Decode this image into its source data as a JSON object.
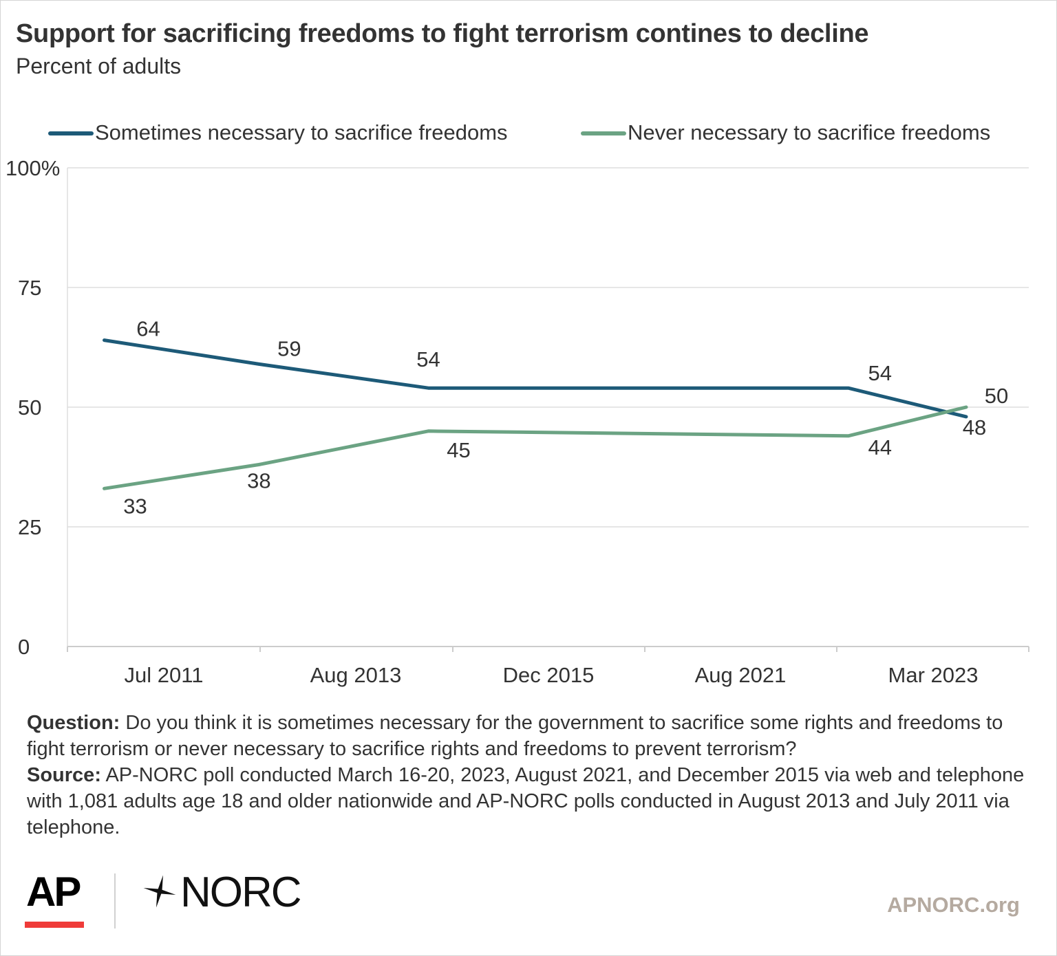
{
  "title": "Support for sacrificing freedoms to fight terrorism contines to decline",
  "subtitle": "Percent of adults",
  "chart_data": {
    "type": "line",
    "title": "Support for sacrificing freedoms to fight terrorism contines to decline",
    "subtitle": "Percent of adults",
    "categories": [
      "Jul 2011",
      "Aug 2013",
      "Dec 2015",
      "Aug 2021",
      "Mar 2023"
    ],
    "x_positions_years": [
      2011.5,
      2013.6,
      2015.9,
      2021.6,
      2023.2
    ],
    "series": [
      {
        "name": "Sometimes necessary to sacrifice freedoms",
        "color": "#1d5a78",
        "values": [
          64,
          59,
          54,
          54,
          48
        ]
      },
      {
        "name": "Never necessary to sacrifice freedoms",
        "color": "#6ba383",
        "values": [
          33,
          38,
          45,
          44,
          50
        ]
      }
    ],
    "ylim": [
      0,
      100
    ],
    "yticks": [
      0,
      25,
      50,
      75,
      100
    ],
    "ytick_labels": [
      "0",
      "25",
      "50",
      "75",
      "100%"
    ],
    "grid": true,
    "legend": "top"
  },
  "notes": {
    "question_label": "Question:",
    "question_text": " Do you think it is sometimes necessary for the government to sacrifice some rights and freedoms to fight terrorism or never necessary to sacrifice rights and freedoms to prevent terrorism?",
    "source_label": "Source:",
    "source_text": "  AP-NORC poll conducted March 16-20, 2023, August 2021, and December 2015 via web and telephone with 1,081 adults age 18 and older nationwide and AP-NORC polls conducted in August 2013 and July 2011 via telephone."
  },
  "logos": {
    "ap": "AP",
    "norc": "NORC",
    "accent_color": "#ef3b39"
  },
  "site": "APNORC.org"
}
